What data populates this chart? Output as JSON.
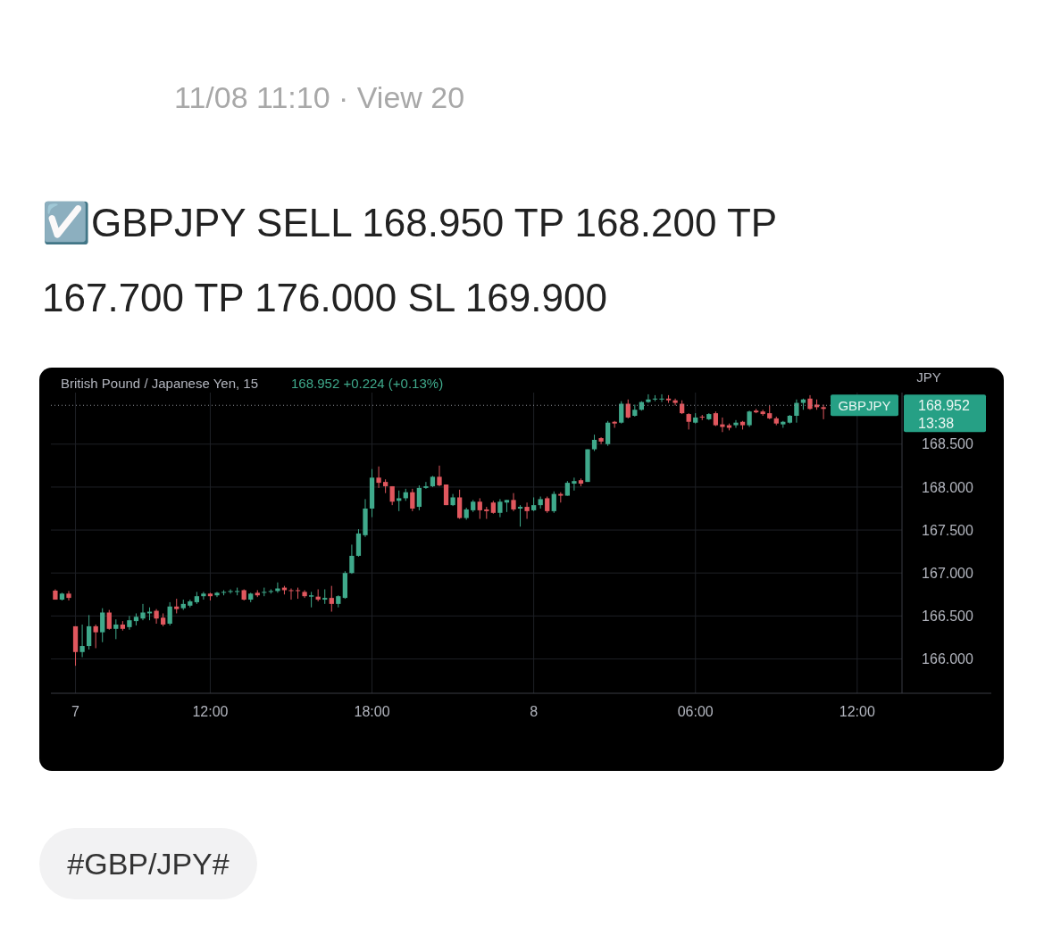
{
  "chart_data": {
    "type": "candlestick",
    "title": "British Pound / Japanese Yen, 15",
    "subtitle": "168.952 +0.224 (+0.13%)",
    "ylabel": "JPY",
    "annotations": [
      "11/08 11:10 · View 20",
      "☑️GBPJPY SELL 168.950 TP 168.200 TP 167.700 TP 176.000 SL 169.900",
      "#GBP/JPY#",
      "13:38",
      "168.952"
    ],
    "categories": [
      null,
      null,
      null,
      "7",
      null,
      null,
      null,
      null,
      null,
      null,
      null,
      null,
      null,
      null,
      null,
      null,
      null,
      null,
      null,
      null,
      null,
      null,
      null,
      "12:00",
      null,
      null,
      null,
      null,
      null,
      null,
      null,
      null,
      null,
      null,
      null,
      null,
      null,
      null,
      null,
      null,
      null,
      null,
      null,
      null,
      null,
      null,
      null,
      "18:00",
      null,
      null,
      null,
      null,
      null,
      null,
      null,
      null,
      null,
      null,
      null,
      null,
      null,
      null,
      null,
      null,
      null,
      null,
      null,
      null,
      null,
      null,
      null,
      "8",
      null,
      null,
      null,
      null,
      null,
      null,
      null,
      null,
      null,
      null,
      null,
      null,
      null,
      null,
      null,
      null,
      null,
      null,
      null,
      null,
      null,
      null,
      null,
      "06:00",
      null,
      null,
      null,
      null,
      null,
      null,
      null,
      null,
      null,
      null,
      null,
      null,
      null,
      null,
      null,
      null,
      null,
      null,
      null,
      null,
      null,
      null,
      null,
      "12:00",
      null,
      null,
      null,
      null,
      null,
      null
    ],
    "ohlc": [
      [
        166.795,
        166.81,
        166.69,
        166.69
      ],
      [
        166.69,
        166.77,
        166.68,
        166.76
      ],
      [
        166.76,
        166.79,
        166.68,
        166.71
      ],
      [
        166.38,
        166.38,
        165.92,
        166.08
      ],
      [
        166.08,
        166.4,
        166.02,
        166.15
      ],
      [
        166.15,
        166.51,
        166.11,
        166.38
      ],
      [
        166.38,
        166.4,
        166.125,
        166.31
      ],
      [
        166.31,
        166.59,
        166.195,
        166.54
      ],
      [
        166.54,
        166.57,
        166.34,
        166.35
      ],
      [
        166.35,
        166.46,
        166.23,
        166.4
      ],
      [
        166.4,
        166.44,
        166.33,
        166.35
      ],
      [
        166.37,
        166.5,
        166.34,
        166.45
      ],
      [
        166.44,
        166.53,
        166.39,
        166.49
      ],
      [
        166.47,
        166.64,
        166.45,
        166.54
      ],
      [
        166.53,
        166.6,
        166.45,
        166.55
      ],
      [
        166.56,
        166.58,
        166.41,
        166.47
      ],
      [
        166.48,
        166.53,
        166.38,
        166.4
      ],
      [
        166.41,
        166.66,
        166.39,
        166.61
      ],
      [
        166.61,
        166.7,
        166.53,
        166.58
      ],
      [
        166.59,
        166.69,
        166.57,
        166.64
      ],
      [
        166.62,
        166.69,
        166.6,
        166.67
      ],
      [
        166.66,
        166.78,
        166.64,
        166.73
      ],
      [
        166.73,
        166.78,
        166.69,
        166.76
      ],
      [
        166.76,
        166.77,
        166.68,
        166.73
      ],
      [
        166.74,
        166.78,
        166.72,
        166.77
      ],
      [
        166.77,
        166.8,
        166.74,
        166.78
      ],
      [
        166.78,
        166.81,
        166.76,
        166.79
      ],
      [
        166.78,
        166.83,
        166.74,
        166.79
      ],
      [
        166.8,
        166.81,
        166.68,
        166.69
      ],
      [
        166.69,
        166.77,
        166.66,
        166.76
      ],
      [
        166.77,
        166.8,
        166.72,
        166.74
      ],
      [
        166.77,
        166.83,
        166.73,
        166.78
      ],
      [
        166.78,
        166.81,
        166.76,
        166.79
      ],
      [
        166.79,
        166.89,
        166.77,
        166.82
      ],
      [
        166.83,
        166.85,
        166.75,
        166.8
      ],
      [
        166.8,
        166.82,
        166.69,
        166.79
      ],
      [
        166.8,
        166.83,
        166.7,
        166.79
      ],
      [
        166.78,
        166.8,
        166.71,
        166.73
      ],
      [
        166.725,
        166.78,
        166.6,
        166.74
      ],
      [
        166.725,
        166.81,
        166.67,
        166.69
      ],
      [
        166.69,
        166.81,
        166.64,
        166.71
      ],
      [
        166.71,
        166.85,
        166.55,
        166.64
      ],
      [
        166.64,
        166.74,
        166.6,
        166.73
      ],
      [
        166.71,
        167.02,
        166.7,
        167.0
      ],
      [
        167.0,
        167.33,
        166.99,
        167.2
      ],
      [
        167.2,
        167.51,
        167.19,
        167.46
      ],
      [
        167.44,
        167.86,
        167.42,
        167.75
      ],
      [
        167.75,
        168.21,
        167.65,
        168.11
      ],
      [
        168.11,
        168.24,
        167.99,
        168.05
      ],
      [
        168.06,
        168.09,
        167.93,
        168.01
      ],
      [
        168.01,
        168.01,
        167.79,
        167.83
      ],
      [
        167.84,
        167.96,
        167.72,
        167.87
      ],
      [
        167.87,
        167.98,
        167.84,
        167.94
      ],
      [
        167.94,
        167.98,
        167.72,
        167.75
      ],
      [
        167.77,
        168.02,
        167.73,
        167.99
      ],
      [
        167.99,
        168.06,
        167.98,
        168.01
      ],
      [
        168.01,
        168.13,
        168.0,
        168.12
      ],
      [
        168.12,
        168.25,
        168.01,
        168.02
      ],
      [
        168.03,
        168.03,
        167.79,
        167.79
      ],
      [
        167.79,
        167.92,
        167.78,
        167.88
      ],
      [
        167.88,
        167.97,
        167.63,
        167.64
      ],
      [
        167.64,
        167.76,
        167.62,
        167.74
      ],
      [
        167.73,
        167.85,
        167.71,
        167.83
      ],
      [
        167.83,
        167.87,
        167.63,
        167.73
      ],
      [
        167.74,
        167.77,
        167.63,
        167.72
      ],
      [
        167.82,
        167.84,
        167.69,
        167.7
      ],
      [
        167.7,
        167.86,
        167.65,
        167.83
      ],
      [
        167.82,
        167.85,
        167.71,
        167.85
      ],
      [
        167.85,
        167.93,
        167.72,
        167.74
      ],
      [
        167.75,
        167.79,
        167.54,
        167.77
      ],
      [
        167.77,
        167.82,
        167.63,
        167.72
      ],
      [
        167.73,
        167.88,
        167.72,
        167.79
      ],
      [
        167.79,
        167.89,
        167.75,
        167.86
      ],
      [
        167.87,
        167.89,
        167.7,
        167.72
      ],
      [
        167.72,
        167.95,
        167.7,
        167.92
      ],
      [
        167.92,
        167.94,
        167.82,
        167.9
      ],
      [
        167.9,
        168.07,
        167.9,
        168.05
      ],
      [
        168.04,
        168.11,
        167.96,
        168.07
      ],
      [
        168.08,
        168.1,
        168.01,
        168.04
      ],
      [
        168.06,
        168.44,
        168.06,
        168.44
      ],
      [
        168.44,
        168.61,
        168.42,
        168.55
      ],
      [
        168.57,
        168.58,
        168.5,
        168.53
      ],
      [
        168.5,
        168.77,
        168.48,
        168.75
      ],
      [
        168.76,
        168.77,
        168.69,
        168.74
      ],
      [
        168.75,
        169.0,
        168.74,
        168.97
      ],
      [
        168.97,
        169.02,
        168.8,
        168.81
      ],
      [
        168.83,
        168.96,
        168.82,
        168.9
      ],
      [
        168.9,
        169.0,
        168.89,
        168.99
      ],
      [
        168.99,
        169.08,
        168.98,
        169.02
      ],
      [
        169.02,
        169.07,
        169.0,
        169.03
      ],
      [
        169.02,
        169.08,
        168.99,
        169.03
      ],
      [
        169.03,
        169.07,
        168.98,
        169.01
      ],
      [
        169.01,
        169.03,
        168.95,
        168.98
      ],
      [
        168.97,
        169.01,
        168.85,
        168.86
      ],
      [
        168.85,
        168.86,
        168.67,
        168.76
      ],
      [
        168.75,
        168.86,
        168.74,
        168.81
      ],
      [
        168.82,
        168.84,
        168.78,
        168.81
      ],
      [
        168.79,
        168.86,
        168.78,
        168.85
      ],
      [
        168.86,
        168.88,
        168.71,
        168.72
      ],
      [
        168.73,
        168.81,
        168.64,
        168.7
      ],
      [
        168.72,
        168.74,
        168.66,
        168.69
      ],
      [
        168.72,
        168.78,
        168.69,
        168.75
      ],
      [
        168.76,
        168.77,
        168.67,
        168.72
      ],
      [
        168.72,
        168.89,
        168.7,
        168.88
      ],
      [
        168.89,
        168.91,
        168.86,
        168.87
      ],
      [
        168.88,
        168.9,
        168.83,
        168.85
      ],
      [
        168.86,
        168.95,
        168.79,
        168.8
      ],
      [
        168.8,
        168.82,
        168.72,
        168.74
      ],
      [
        168.73,
        168.77,
        168.69,
        168.76
      ],
      [
        168.75,
        168.84,
        168.74,
        168.83
      ],
      [
        168.83,
        169.02,
        168.75,
        168.98
      ],
      [
        168.98,
        169.03,
        168.9,
        169.02
      ],
      [
        169.03,
        169.07,
        168.9,
        168.91
      ],
      [
        168.96,
        169.02,
        168.9,
        168.93
      ],
      [
        168.93,
        168.96,
        168.79,
        168.91
      ],
      null,
      null,
      null,
      null,
      null,
      null,
      null,
      null,
      null,
      null,
      null
    ],
    "ylim": [
      165.6,
      169.1
    ],
    "yticks": [
      {
        "value": 166,
        "label": "166.000"
      },
      {
        "value": 166.5,
        "label": "166.500"
      },
      {
        "value": 167,
        "label": "167.000"
      },
      {
        "value": 167.5,
        "label": "167.500"
      },
      {
        "value": 168,
        "label": "168.000"
      },
      {
        "value": 168.5,
        "label": "168.500"
      }
    ],
    "grid": true,
    "ref_lines": [
      {
        "axis": "y",
        "value": 168.952,
        "label": "GBPJPY",
        "color": "#8a8d94",
        "line_style": "dotted"
      }
    ]
  }
}
